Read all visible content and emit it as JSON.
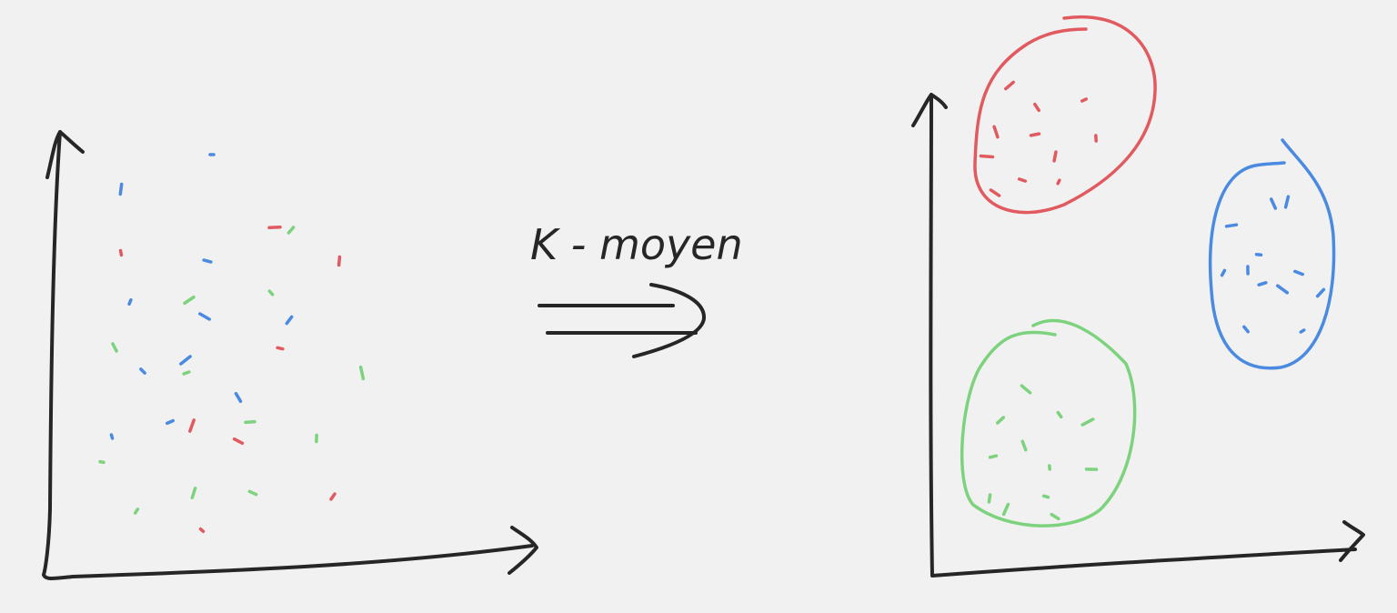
{
  "label": "K - moyen"
}
